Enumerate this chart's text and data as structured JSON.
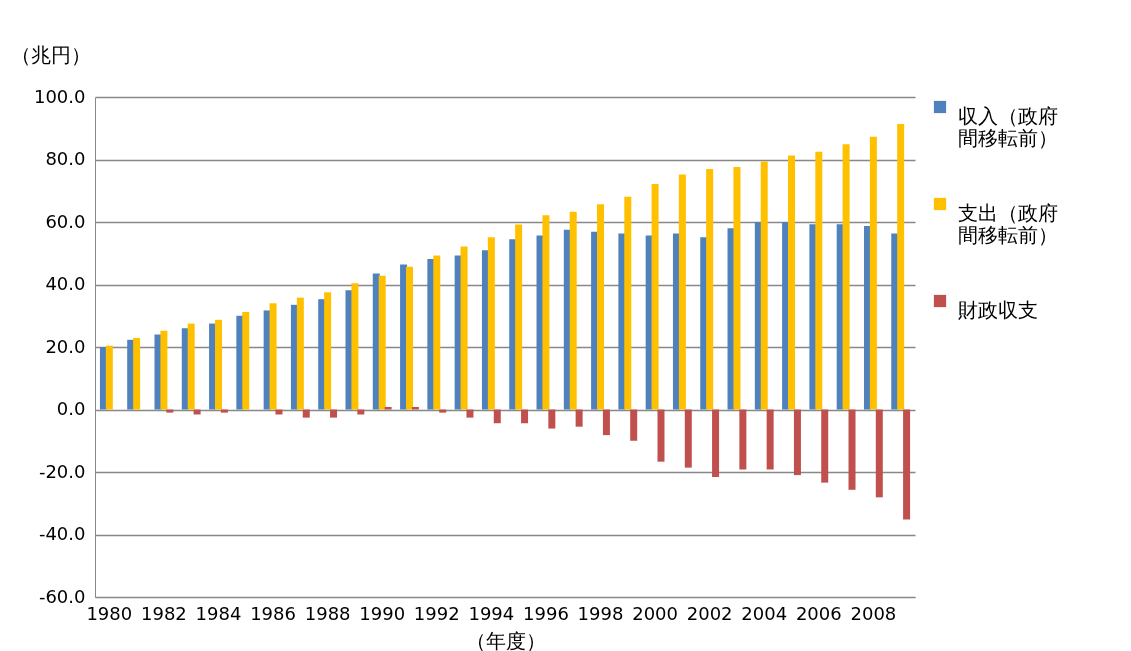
{
  "chart_data": {
    "type": "bar",
    "ylabel": "（兆円）",
    "xlabel": "（年度）",
    "categories": [
      "1980",
      null,
      "1982",
      null,
      "1984",
      null,
      "1986",
      null,
      "1988",
      null,
      "1990",
      null,
      "1992",
      null,
      "1994",
      null,
      "1996",
      null,
      "1998",
      null,
      "2000",
      null,
      "2002",
      null,
      "2004",
      null,
      "2006",
      null,
      "2008",
      null
    ],
    "series": [
      {
        "name": "収入（政府間移転前）",
        "color": "#4f81bd",
        "values": [
          20,
          22.3,
          24,
          26,
          27.5,
          30,
          31.7,
          33.5,
          35.3,
          38.2,
          43.5,
          46.4,
          48.2,
          49.3,
          51,
          54.5,
          55.7,
          57.5,
          56.9,
          56.3,
          55.7,
          56.3,
          55.1,
          58,
          60,
          60,
          59.3,
          59.3,
          58.7,
          56.3
        ]
      },
      {
        "name": "支出（政府間移転前）",
        "color": "#ffc000",
        "values": [
          20.4,
          22.9,
          25.2,
          27.5,
          28.7,
          31.2,
          34,
          35.8,
          37.5,
          40.4,
          42.8,
          45.7,
          49.3,
          52.2,
          55.1,
          59.2,
          62.2,
          63.3,
          65.7,
          68.1,
          72.2,
          75.2,
          77,
          77.6,
          79.4,
          81.3,
          82.5,
          84.9,
          87.3,
          91.4
        ]
      },
      {
        "name": "財政収支",
        "color": "#c0504d",
        "values": [
          null,
          null,
          -1,
          -1.6,
          -1,
          null,
          -1.6,
          -2.6,
          -2.6,
          -1.6,
          0.8,
          0.8,
          -1,
          -2.6,
          -4.4,
          -4.4,
          -6.1,
          -5.5,
          -8.2,
          -10,
          -16.7,
          -18.6,
          -21.6,
          -19.2,
          -19.2,
          -21,
          -23.4,
          -25.7,
          -28.1,
          -35.2
        ]
      }
    ],
    "ylim": [
      -60,
      100
    ],
    "yticks": [
      {
        "value": -60,
        "label": "-60.0"
      },
      {
        "value": -40,
        "label": "-40.0"
      },
      {
        "value": -20,
        "label": "-20.0"
      },
      {
        "value": 0,
        "label": "0.0"
      },
      {
        "value": 20,
        "label": "20.0"
      },
      {
        "value": 40,
        "label": "40.0"
      },
      {
        "value": 60,
        "label": "60.0"
      },
      {
        "value": 80,
        "label": "80.0"
      },
      {
        "value": 100,
        "label": "100.0"
      }
    ],
    "grid": "y",
    "legend": "right"
  }
}
